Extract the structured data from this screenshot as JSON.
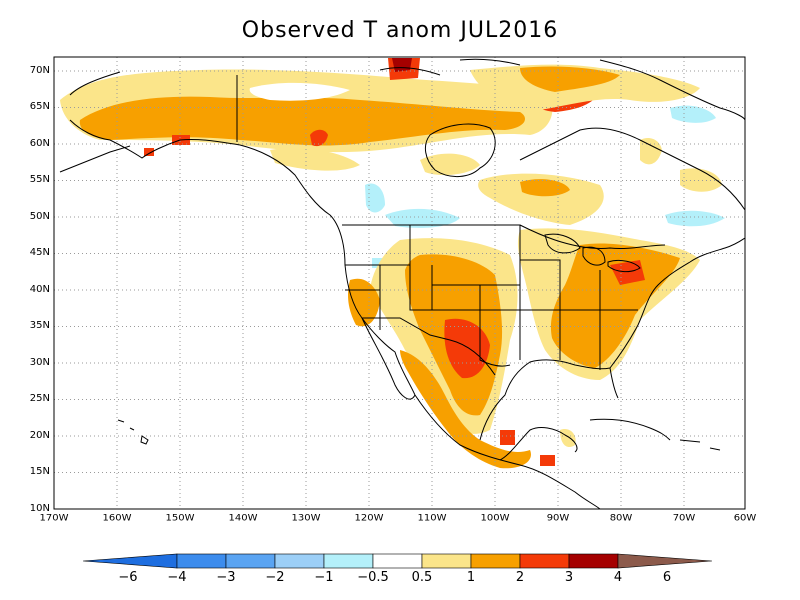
{
  "title": "Observed T anom JUL2016",
  "lat_labels": [
    "70N",
    "65N",
    "60N",
    "55N",
    "50N",
    "45N",
    "40N",
    "35N",
    "30N",
    "25N",
    "20N",
    "15N",
    "10N"
  ],
  "lon_labels": [
    "170W",
    "160W",
    "150W",
    "140W",
    "130W",
    "120W",
    "110W",
    "100W",
    "90W",
    "80W",
    "70W",
    "60W"
  ],
  "colorbar": {
    "colors": [
      "#1e6ee0",
      "#3c8ced",
      "#5aa4f2",
      "#9ccff7",
      "#b4f0fa",
      "#ffffff",
      "#fbe58a",
      "#f7a000",
      "#f43a08",
      "#a50000",
      "#8c5a4b"
    ],
    "labels": [
      "−6",
      "−4",
      "−3",
      "−2",
      "−1",
      "−0.5",
      "0.5",
      "1",
      "2",
      "3",
      "4",
      "6"
    ]
  },
  "colors": {
    "light_yellow": "#fbe58a",
    "orange": "#f7a000",
    "red": "#f43a08",
    "dark_red": "#a50000",
    "light_blue": "#b4f0fa"
  }
}
